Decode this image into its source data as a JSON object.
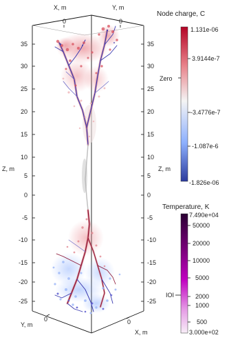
{
  "axes": {
    "x_label": "X, m",
    "y_label": "Y, m",
    "z_label": "Z, m",
    "top_x_tick": "0",
    "top_y_tick": "0",
    "z_ticks_left": [
      "35",
      "30",
      "25",
      "20",
      "15",
      "10",
      "5",
      "0",
      "-5",
      "-10",
      "-15",
      "-20",
      "-25"
    ],
    "z_ticks_right": [
      "35",
      "30",
      "25",
      "20",
      "15",
      "10",
      "5",
      "0",
      "-5",
      "-10",
      "-15",
      "-20",
      "-25"
    ],
    "bottom_y_label": "Y, m",
    "bottom_x_label": "X, m",
    "bottom_y_tick": "0",
    "bottom_x_tick": "0"
  },
  "charge_legend": {
    "title": "Node charge, C",
    "max_label": "1.131e-06",
    "min_label": "-1.826e-06",
    "ticks": [
      "3.9144e-7",
      "-3.4776e-7",
      "-1.087e-6"
    ],
    "zero_label": "Zero",
    "colors": [
      "#b40426",
      "#e8828a",
      "#f4f4f4",
      "#8db0fe",
      "#2c3b9d"
    ]
  },
  "temperature_legend": {
    "title": "Temperature, K",
    "max_label": "7.490e+04",
    "min_label": "3.000e+02",
    "ticks": [
      "50000",
      "20000",
      "10000",
      "5000",
      "2000",
      "1000",
      "500"
    ],
    "marker_label": "IOI",
    "colors": [
      "#2a0033",
      "#7a007a",
      "#c000c0",
      "#e59ae5",
      "#f8eef8"
    ]
  }
}
